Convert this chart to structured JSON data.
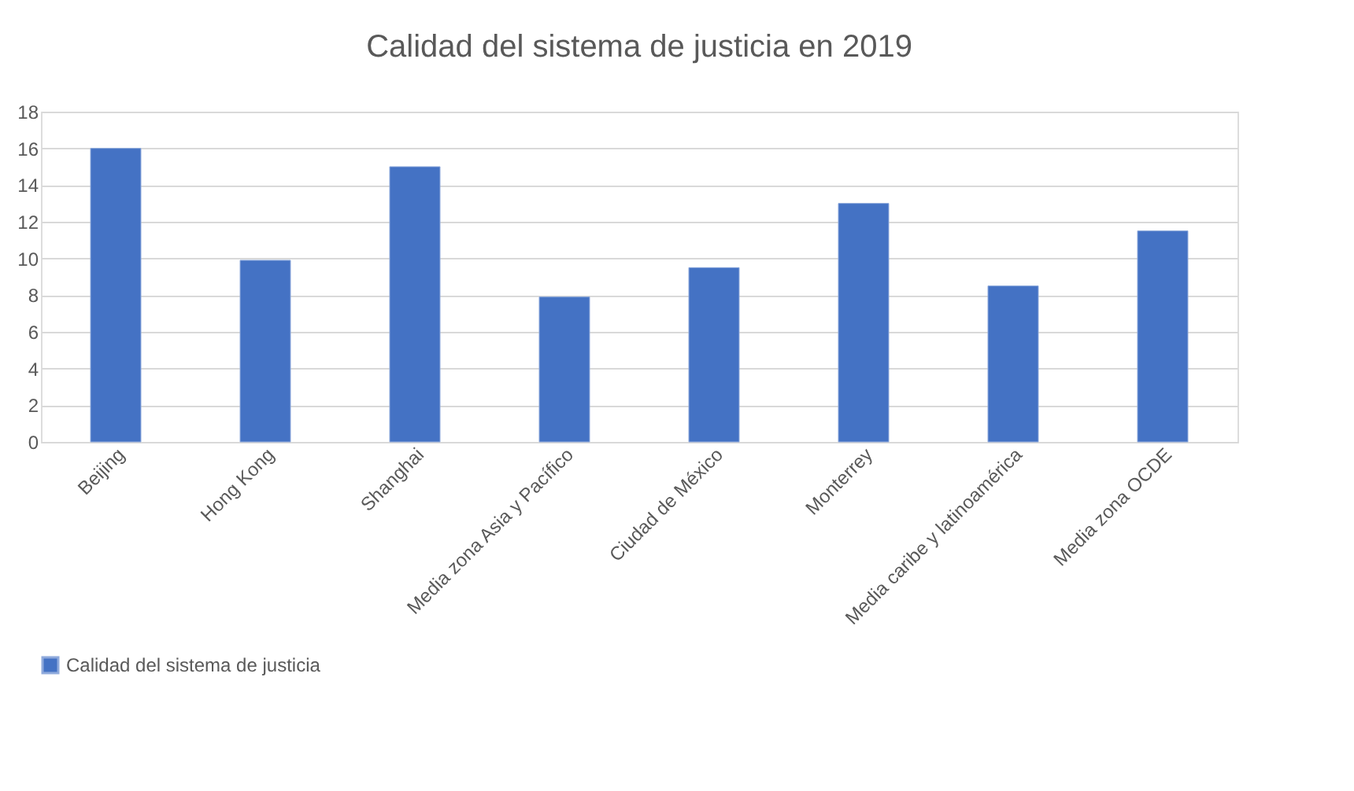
{
  "chart_data": {
    "type": "bar",
    "title": "Calidad del sistema de justicia en 2019",
    "categories": [
      "Beijing",
      "Hong Kong",
      "Shanghai",
      "Media zona Asia y Pacífico",
      "Ciudad de México",
      "Monterrey",
      "Media caribe y latinoamérica",
      "Media zona OCDE"
    ],
    "series": [
      {
        "name": "Calidad del sistema de justicia",
        "color": "#4472c4",
        "values": [
          16,
          9.9,
          15,
          7.9,
          9.5,
          13,
          8.5,
          11.5
        ]
      }
    ],
    "ylim": [
      0,
      18
    ],
    "yticks": [
      0,
      2,
      4,
      6,
      8,
      10,
      12,
      14,
      16,
      18
    ],
    "grid": "y",
    "legend": "bottom"
  }
}
